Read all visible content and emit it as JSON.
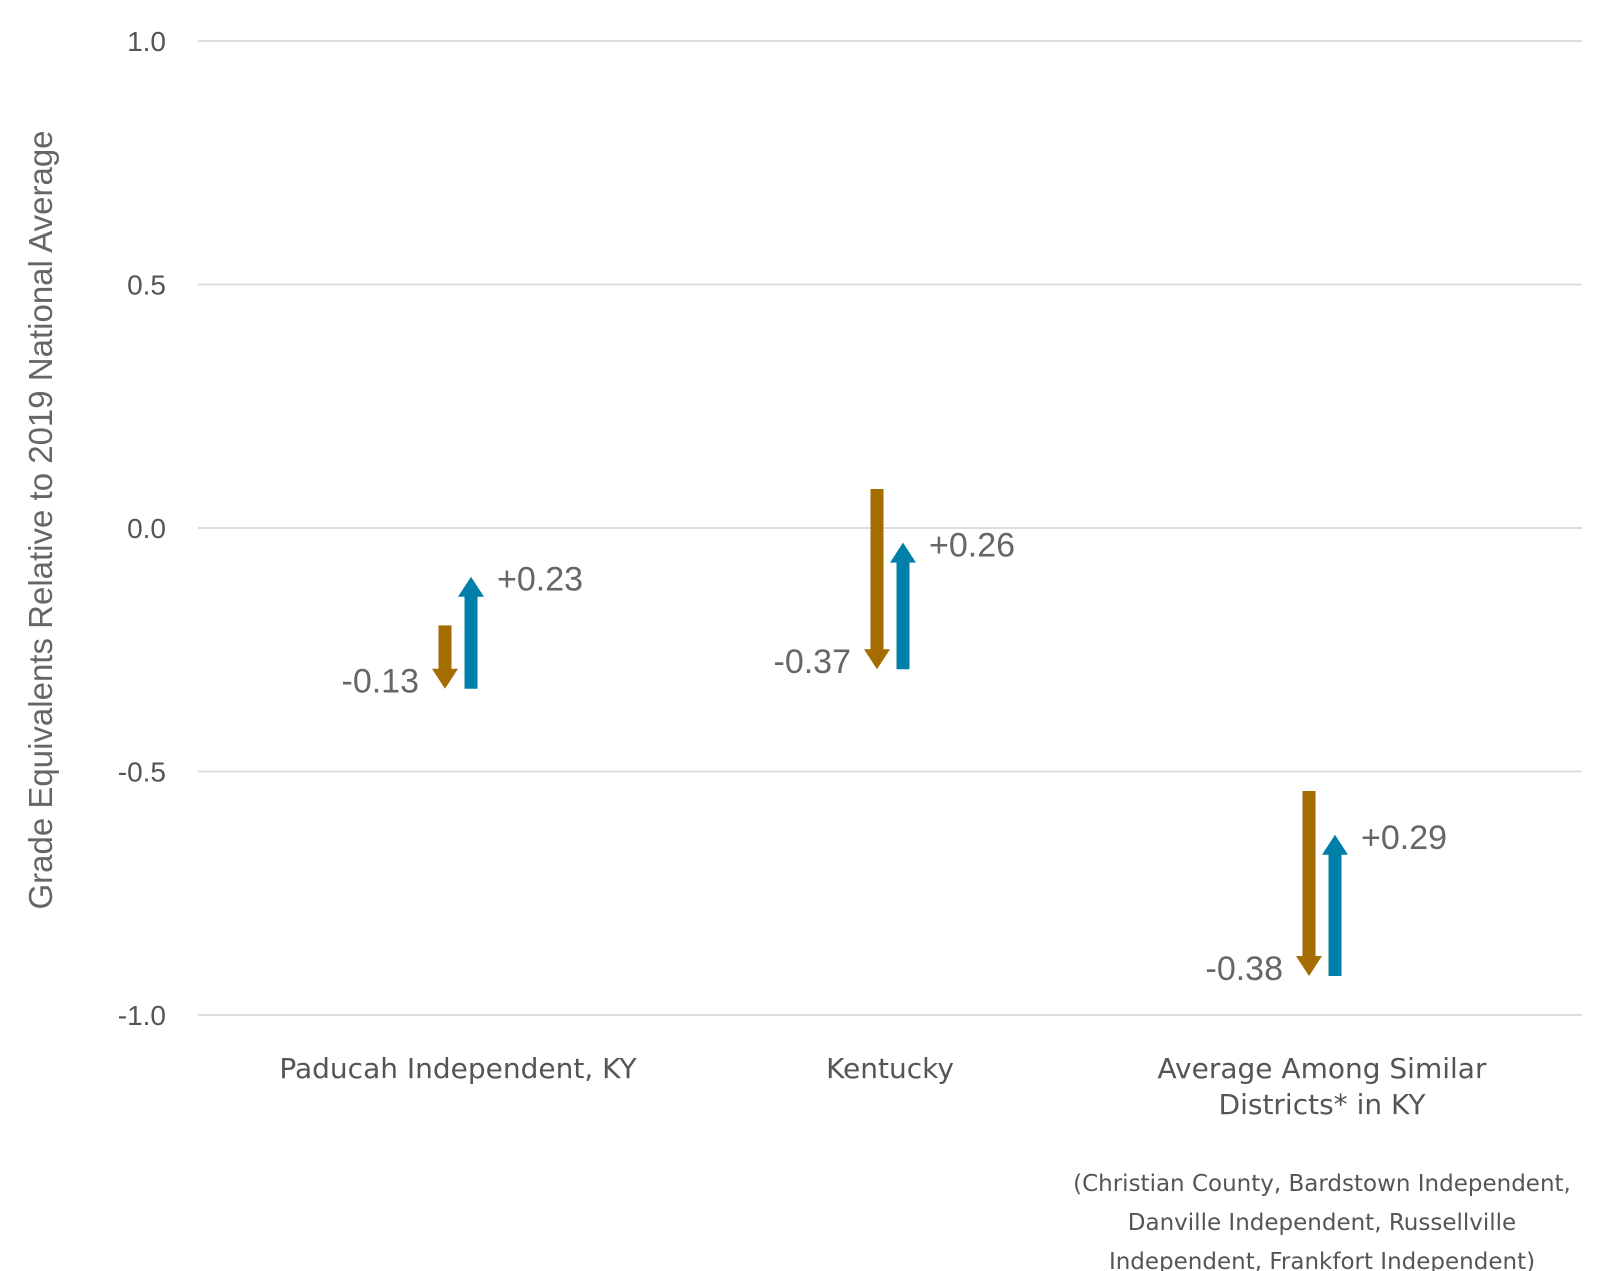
{
  "chart_data": {
    "type": "bar",
    "ylabel": "Grade Equivalents Relative to 2019 National Average",
    "ylim": [
      -1.0,
      1.0
    ],
    "yticks": [
      "1.0",
      "0.5",
      "0.0",
      "-0.5",
      "-1.0"
    ],
    "ytick_values": [
      1.0,
      0.5,
      0.0,
      -0.5,
      -1.0
    ],
    "grid": true,
    "categories": [
      {
        "lines": [
          "Paducah Independent, KY"
        ],
        "note_lines": [],
        "decline": {
          "from": -0.2,
          "to": -0.33,
          "label": "-0.13"
        },
        "recovery": {
          "from": -0.33,
          "to": -0.1,
          "label": "+0.23"
        }
      },
      {
        "lines": [
          "Kentucky"
        ],
        "note_lines": [],
        "decline": {
          "from": 0.08,
          "to": -0.29,
          "label": "-0.37"
        },
        "recovery": {
          "from": -0.29,
          "to": -0.03,
          "label": "+0.26"
        }
      },
      {
        "lines": [
          "Average Among Similar",
          "Districts* in KY"
        ],
        "note_lines": [
          "(Christian County, Bardstown Independent,",
          "Danville Independent, Russellville",
          "Independent, Frankfort Independent)"
        ],
        "decline": {
          "from": -0.54,
          "to": -0.92,
          "label": "-0.38"
        },
        "recovery": {
          "from": -0.92,
          "to": -0.63,
          "label": "+0.29"
        }
      }
    ],
    "colors": {
      "decline": "#a56c00",
      "recovery": "#0080a8",
      "grid": "#dddddd",
      "text": "#555555"
    }
  }
}
